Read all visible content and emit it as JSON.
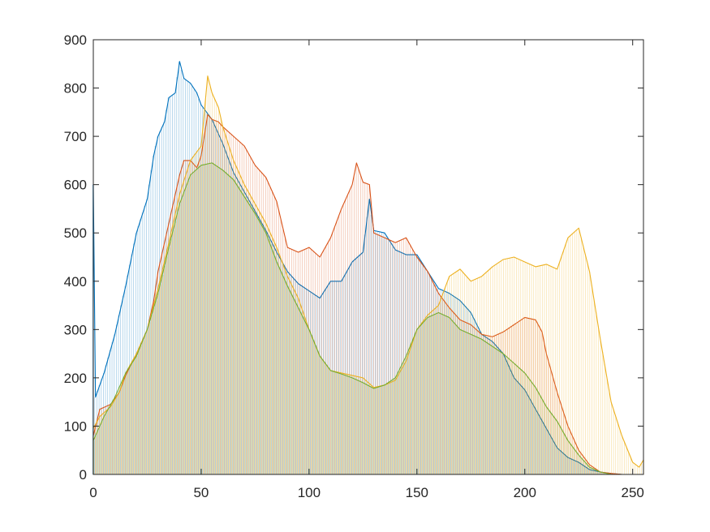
{
  "chart_data": {
    "type": "area",
    "title": "",
    "xlabel": "",
    "ylabel": "",
    "xlim": [
      0,
      255
    ],
    "ylim": [
      0,
      900
    ],
    "x_ticks": [
      0,
      50,
      100,
      150,
      200,
      250
    ],
    "y_ticks": [
      0,
      100,
      200,
      300,
      400,
      500,
      600,
      700,
      800,
      900
    ],
    "x_tick_labels": [
      "0",
      "50",
      "100",
      "150",
      "200",
      "250"
    ],
    "y_tick_labels": [
      "0",
      "100",
      "200",
      "300",
      "400",
      "500",
      "600",
      "700",
      "800",
      "900"
    ],
    "grid": false,
    "legend": "none",
    "series": [
      {
        "color": "#0072BD",
        "points": [
          [
            0,
            600
          ],
          [
            1,
            160
          ],
          [
            5,
            210
          ],
          [
            10,
            290
          ],
          [
            15,
            390
          ],
          [
            20,
            500
          ],
          [
            25,
            570
          ],
          [
            28,
            660
          ],
          [
            30,
            700
          ],
          [
            33,
            730
          ],
          [
            35,
            780
          ],
          [
            38,
            790
          ],
          [
            40,
            855
          ],
          [
            42,
            820
          ],
          [
            45,
            810
          ],
          [
            48,
            790
          ],
          [
            50,
            765
          ],
          [
            55,
            735
          ],
          [
            60,
            685
          ],
          [
            65,
            625
          ],
          [
            70,
            585
          ],
          [
            75,
            545
          ],
          [
            80,
            505
          ],
          [
            85,
            460
          ],
          [
            90,
            420
          ],
          [
            95,
            395
          ],
          [
            100,
            380
          ],
          [
            105,
            365
          ],
          [
            110,
            400
          ],
          [
            115,
            400
          ],
          [
            120,
            440
          ],
          [
            125,
            460
          ],
          [
            128,
            570
          ],
          [
            130,
            505
          ],
          [
            135,
            500
          ],
          [
            140,
            465
          ],
          [
            145,
            455
          ],
          [
            150,
            455
          ],
          [
            155,
            420
          ],
          [
            160,
            385
          ],
          [
            165,
            375
          ],
          [
            170,
            360
          ],
          [
            175,
            335
          ],
          [
            180,
            290
          ],
          [
            185,
            275
          ],
          [
            190,
            250
          ],
          [
            195,
            200
          ],
          [
            200,
            175
          ],
          [
            205,
            135
          ],
          [
            210,
            95
          ],
          [
            215,
            55
          ],
          [
            220,
            35
          ],
          [
            225,
            25
          ],
          [
            230,
            10
          ],
          [
            235,
            5
          ],
          [
            240,
            2
          ],
          [
            245,
            0
          ],
          [
            255,
            0
          ]
        ]
      },
      {
        "color": "#D95319",
        "points": [
          [
            0,
            80
          ],
          [
            3,
            135
          ],
          [
            8,
            145
          ],
          [
            12,
            170
          ],
          [
            15,
            205
          ],
          [
            20,
            250
          ],
          [
            25,
            300
          ],
          [
            28,
            360
          ],
          [
            30,
            420
          ],
          [
            35,
            520
          ],
          [
            40,
            620
          ],
          [
            42,
            650
          ],
          [
            45,
            650
          ],
          [
            48,
            635
          ],
          [
            50,
            660
          ],
          [
            53,
            745
          ],
          [
            55,
            735
          ],
          [
            58,
            730
          ],
          [
            60,
            720
          ],
          [
            65,
            700
          ],
          [
            70,
            680
          ],
          [
            75,
            640
          ],
          [
            80,
            615
          ],
          [
            85,
            565
          ],
          [
            90,
            470
          ],
          [
            95,
            460
          ],
          [
            100,
            470
          ],
          [
            105,
            450
          ],
          [
            110,
            490
          ],
          [
            115,
            550
          ],
          [
            120,
            600
          ],
          [
            122,
            645
          ],
          [
            125,
            605
          ],
          [
            128,
            600
          ],
          [
            130,
            500
          ],
          [
            135,
            490
          ],
          [
            140,
            480
          ],
          [
            145,
            490
          ],
          [
            150,
            450
          ],
          [
            155,
            420
          ],
          [
            160,
            375
          ],
          [
            165,
            345
          ],
          [
            170,
            320
          ],
          [
            175,
            310
          ],
          [
            180,
            290
          ],
          [
            185,
            285
          ],
          [
            190,
            295
          ],
          [
            195,
            310
          ],
          [
            200,
            325
          ],
          [
            205,
            320
          ],
          [
            208,
            295
          ],
          [
            210,
            250
          ],
          [
            215,
            170
          ],
          [
            220,
            100
          ],
          [
            225,
            50
          ],
          [
            230,
            20
          ],
          [
            235,
            5
          ],
          [
            240,
            2
          ],
          [
            245,
            0
          ],
          [
            255,
            0
          ]
        ]
      },
      {
        "color": "#EDB120",
        "points": [
          [
            0,
            95
          ],
          [
            3,
            120
          ],
          [
            8,
            140
          ],
          [
            12,
            170
          ],
          [
            15,
            210
          ],
          [
            20,
            250
          ],
          [
            25,
            300
          ],
          [
            30,
            385
          ],
          [
            35,
            480
          ],
          [
            40,
            580
          ],
          [
            45,
            650
          ],
          [
            50,
            680
          ],
          [
            53,
            825
          ],
          [
            55,
            790
          ],
          [
            58,
            760
          ],
          [
            60,
            720
          ],
          [
            65,
            650
          ],
          [
            70,
            600
          ],
          [
            75,
            560
          ],
          [
            80,
            520
          ],
          [
            85,
            470
          ],
          [
            90,
            410
          ],
          [
            95,
            365
          ],
          [
            100,
            300
          ],
          [
            105,
            245
          ],
          [
            110,
            215
          ],
          [
            115,
            210
          ],
          [
            120,
            205
          ],
          [
            125,
            200
          ],
          [
            130,
            180
          ],
          [
            135,
            185
          ],
          [
            140,
            195
          ],
          [
            145,
            235
          ],
          [
            150,
            300
          ],
          [
            155,
            330
          ],
          [
            160,
            350
          ],
          [
            165,
            410
          ],
          [
            170,
            425
          ],
          [
            175,
            400
          ],
          [
            180,
            410
          ],
          [
            185,
            430
          ],
          [
            190,
            445
          ],
          [
            195,
            450
          ],
          [
            200,
            440
          ],
          [
            205,
            430
          ],
          [
            210,
            435
          ],
          [
            215,
            425
          ],
          [
            220,
            490
          ],
          [
            225,
            510
          ],
          [
            230,
            420
          ],
          [
            235,
            280
          ],
          [
            240,
            150
          ],
          [
            245,
            80
          ],
          [
            250,
            25
          ],
          [
            253,
            15
          ],
          [
            255,
            30
          ]
        ]
      },
      {
        "color": "#77AC30",
        "points": [
          [
            0,
            70
          ],
          [
            5,
            120
          ],
          [
            10,
            160
          ],
          [
            15,
            210
          ],
          [
            20,
            245
          ],
          [
            25,
            300
          ],
          [
            30,
            375
          ],
          [
            35,
            470
          ],
          [
            40,
            560
          ],
          [
            45,
            620
          ],
          [
            50,
            640
          ],
          [
            55,
            645
          ],
          [
            60,
            630
          ],
          [
            65,
            610
          ],
          [
            70,
            575
          ],
          [
            75,
            540
          ],
          [
            80,
            500
          ],
          [
            85,
            440
          ],
          [
            90,
            390
          ],
          [
            95,
            345
          ],
          [
            100,
            300
          ],
          [
            105,
            245
          ],
          [
            110,
            215
          ],
          [
            115,
            208
          ],
          [
            120,
            200
          ],
          [
            125,
            190
          ],
          [
            130,
            178
          ],
          [
            135,
            185
          ],
          [
            140,
            200
          ],
          [
            145,
            245
          ],
          [
            150,
            300
          ],
          [
            155,
            325
          ],
          [
            160,
            335
          ],
          [
            165,
            325
          ],
          [
            170,
            300
          ],
          [
            175,
            290
          ],
          [
            180,
            280
          ],
          [
            185,
            265
          ],
          [
            190,
            250
          ],
          [
            195,
            230
          ],
          [
            200,
            210
          ],
          [
            205,
            180
          ],
          [
            210,
            140
          ],
          [
            215,
            110
          ],
          [
            220,
            70
          ],
          [
            225,
            40
          ],
          [
            230,
            15
          ],
          [
            235,
            5
          ],
          [
            240,
            0
          ],
          [
            255,
            0
          ]
        ]
      }
    ]
  }
}
